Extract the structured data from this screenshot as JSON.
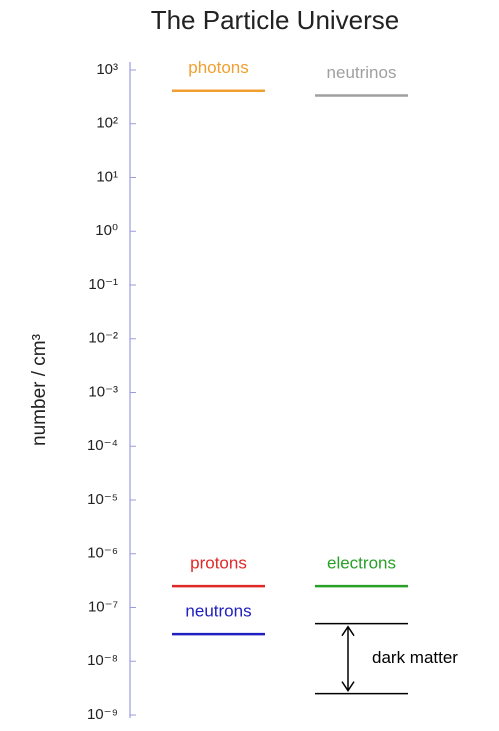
{
  "chart_data": {
    "type": "levels",
    "title": "The Particle Universe",
    "y_label": "number / cm³",
    "log_scale": true,
    "ylim": [
      1e-09,
      1000
    ],
    "yticks": [
      {
        "value": 1000,
        "label": "10³"
      },
      {
        "value": 100,
        "label": "10²"
      },
      {
        "value": 10,
        "label": "10¹"
      },
      {
        "value": 1,
        "label": "10⁰"
      },
      {
        "value": 0.1,
        "label": "10⁻¹"
      },
      {
        "value": 0.01,
        "label": "10⁻²"
      },
      {
        "value": 0.001,
        "label": "10⁻³"
      },
      {
        "value": 0.0001,
        "label": "10⁻⁴"
      },
      {
        "value": 1e-05,
        "label": "10⁻⁵"
      },
      {
        "value": 1e-06,
        "label": "10⁻⁶"
      },
      {
        "value": 1e-07,
        "label": "10⁻⁷"
      },
      {
        "value": 1e-08,
        "label": "10⁻⁸"
      },
      {
        "value": 1e-09,
        "label": "10⁻⁹"
      }
    ],
    "series": [
      {
        "name": "photons",
        "color": "#f0a030",
        "values": [
          411
        ]
      },
      {
        "name": "neutrinos",
        "color": "#a0a0a0",
        "values": [
          336
        ]
      },
      {
        "name": "protons",
        "color": "#e02828",
        "values": [
          2.5e-07
        ]
      },
      {
        "name": "electrons",
        "color": "#28a028",
        "values": [
          2.5e-07
        ]
      },
      {
        "name": "neutrons",
        "color": "#2020c0",
        "values": [
          3.2e-08
        ]
      },
      {
        "name": "dark matter",
        "color": "#000000",
        "values": [
          5e-08,
          2.5e-09
        ]
      }
    ]
  }
}
